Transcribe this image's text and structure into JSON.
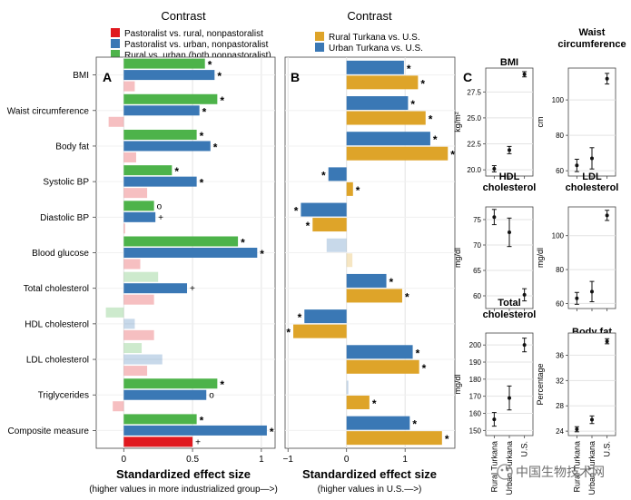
{
  "colors": {
    "red": "#e0191f",
    "blue": "#3a78b5",
    "green": "#4db34a",
    "gold": "#dea429",
    "panel_bg": "#ffffff",
    "grid": "#e3e3e3",
    "text": "#111111"
  },
  "panel_a": {
    "label": "A",
    "title": "Contrast",
    "legend": [
      {
        "label": "Pastoralist vs. rural, nonpastoralist",
        "color": "red"
      },
      {
        "label": "Pastoralist vs. urban, nonpastoralist",
        "color": "blue"
      },
      {
        "label": "Rural vs. urban (both nonpastoralist)",
        "color": "green"
      }
    ],
    "xlabel": "Standardized effect size",
    "xsub": "(higher values in more industrialized group—>)"
  },
  "panel_b": {
    "label": "B",
    "title": "Contrast",
    "legend": [
      {
        "label": "Rural Turkana vs. U.S.",
        "color": "gold"
      },
      {
        "label": "Urban Turkana vs. U.S.",
        "color": "blue"
      }
    ],
    "xlabel": "Standardized effect size",
    "xsub": "(higher values in U.S.—>)"
  },
  "panel_c": {
    "label": "C"
  },
  "watermark": "中国生物技术网",
  "chart_data": [
    {
      "type": "bar",
      "orientation": "horizontal",
      "panel": "A",
      "categories": [
        "BMI",
        "Waist circumference",
        "Body fat",
        "Systolic BP",
        "Diastolic BP",
        "Blood glucose",
        "Total cholesterol",
        "HDL cholesterol",
        "LDL cholesterol",
        "Triglycerides",
        "Composite measure"
      ],
      "series": [
        {
          "name": "Rural vs. urban (both nonpastoralist)",
          "color": "green",
          "values": [
            0.59,
            0.68,
            0.53,
            0.35,
            0.22,
            0.83,
            0.25,
            -0.13,
            0.13,
            0.68,
            0.53
          ],
          "marks": [
            "*",
            "*",
            "*",
            "*",
            "o",
            "*",
            "",
            "",
            "",
            "*",
            "*"
          ],
          "faded": [
            false,
            false,
            false,
            false,
            false,
            false,
            true,
            true,
            true,
            false,
            false
          ]
        },
        {
          "name": "Pastoralist vs. urban, nonpastoralist",
          "color": "blue",
          "values": [
            0.66,
            0.55,
            0.63,
            0.53,
            0.23,
            0.97,
            0.46,
            0.08,
            0.28,
            0.6,
            1.04
          ],
          "marks": [
            "*",
            "*",
            "*",
            "*",
            "+",
            "*",
            "+",
            "",
            "",
            "o",
            "*"
          ],
          "faded": [
            false,
            false,
            false,
            false,
            false,
            false,
            false,
            true,
            true,
            false,
            false
          ]
        },
        {
          "name": "Pastoralist vs. rural, nonpastoralist",
          "color": "red",
          "values": [
            0.08,
            -0.11,
            0.09,
            0.17,
            0.01,
            0.12,
            0.22,
            0.22,
            0.17,
            -0.08,
            0.5
          ],
          "marks": [
            "",
            "",
            "",
            "",
            "",
            "",
            "",
            "",
            "",
            "",
            "+"
          ],
          "faded": [
            true,
            true,
            true,
            true,
            true,
            true,
            true,
            true,
            true,
            true,
            false
          ]
        }
      ],
      "xlim": [
        -0.2,
        1.1
      ],
      "xticks": [
        "0",
        "0.5",
        "1"
      ],
      "xtick_values": [
        0,
        0.5,
        1
      ],
      "grid": true
    },
    {
      "type": "bar",
      "orientation": "horizontal",
      "panel": "B",
      "categories": [
        "BMI",
        "Waist circumference",
        "Body fat",
        "Systolic BP",
        "Diastolic BP",
        "Blood glucose",
        "Total cholesterol",
        "HDL cholesterol",
        "LDL cholesterol",
        "Triglycerides",
        "Composite measure"
      ],
      "series": [
        {
          "name": "Urban Turkana vs. U.S.",
          "color": "blue",
          "values": [
            0.98,
            1.05,
            1.43,
            -0.31,
            -0.78,
            -0.34,
            0.68,
            -0.72,
            1.13,
            0.0,
            1.08
          ],
          "marks": [
            "*",
            "*",
            "*",
            "*",
            "*",
            "",
            "*",
            "*",
            "*",
            "",
            "*"
          ],
          "faded": [
            false,
            false,
            false,
            false,
            false,
            true,
            false,
            false,
            false,
            true,
            false
          ]
        },
        {
          "name": "Rural Turkana vs. U.S.",
          "color": "gold",
          "values": [
            1.22,
            1.35,
            1.73,
            0.11,
            -0.58,
            0.1,
            0.95,
            -0.91,
            1.24,
            0.39,
            1.63
          ],
          "marks": [
            "*",
            "*",
            "*",
            "*",
            "*",
            "",
            "*",
            "*",
            "*",
            "*",
            "*"
          ],
          "faded": [
            false,
            false,
            false,
            false,
            false,
            true,
            false,
            false,
            false,
            false,
            false
          ]
        }
      ],
      "xlim": [
        -1.05,
        1.85
      ],
      "xticks": [
        "−1",
        "0",
        "1"
      ],
      "xtick_values": [
        -1,
        0,
        1
      ],
      "grid": true
    },
    {
      "type": "scatter",
      "panel": "C",
      "subplots": [
        {
          "title": [
            "BMI"
          ],
          "ylabel": "kg/m²",
          "ylim": [
            19.4,
            29.8
          ],
          "yticks": [
            20.0,
            22.5,
            25.0,
            27.5
          ],
          "ytick_labels": [
            "20.0",
            "22.5",
            "25.0",
            "27.5"
          ],
          "categories": [
            "Rural Turkana",
            "Urban Turkana",
            "U.S."
          ],
          "values": [
            20.1,
            21.9,
            29.2
          ],
          "err": [
            0.3,
            0.35,
            0.25
          ]
        },
        {
          "title": [
            "Waist",
            "circumference"
          ],
          "ylabel": "cm",
          "ylim": [
            57,
            118
          ],
          "yticks": [
            60,
            80,
            100
          ],
          "ytick_labels": [
            "60",
            "80",
            "100"
          ],
          "categories": [
            "Rural Turkana",
            "Urban Turkana",
            "U.S."
          ],
          "values": [
            63,
            67,
            112
          ],
          "err": [
            3.5,
            6,
            3
          ]
        },
        {
          "title": [
            "HDL",
            "cholesterol"
          ],
          "ylabel": "mg/dl",
          "ylim": [
            57.5,
            77.5
          ],
          "yticks": [
            60,
            65,
            70,
            75
          ],
          "ytick_labels": [
            "60",
            "65",
            "70",
            "75"
          ],
          "categories": [
            "Rural Turkana",
            "Urban Turkana",
            "U.S."
          ],
          "values": [
            75.5,
            72.5,
            60.2
          ],
          "err": [
            1.5,
            2.8,
            1.2
          ]
        },
        {
          "title": [
            "LDL",
            "cholesterol"
          ],
          "ylabel": "mg/dl",
          "ylim": [
            57,
            117
          ],
          "yticks": [
            60,
            80,
            100
          ],
          "ytick_labels": [
            "60",
            "80",
            "100"
          ],
          "categories": [
            "Rural Turkana",
            "Urban Turkana",
            "U.S."
          ],
          "values": [
            63,
            67,
            112
          ],
          "err": [
            3.5,
            6,
            3
          ]
        },
        {
          "title": [
            "Total",
            "cholesterol"
          ],
          "ylabel": "mg/dl",
          "ylim": [
            147,
            207
          ],
          "yticks": [
            150,
            160,
            170,
            180,
            190,
            200
          ],
          "ytick_labels": [
            "150",
            "160",
            "170",
            "180",
            "190",
            "200"
          ],
          "categories": [
            "Rural Turkana",
            "Urban Turkana",
            "U.S."
          ],
          "values": [
            156.5,
            169,
            200
          ],
          "err": [
            4,
            7,
            4
          ]
        },
        {
          "title": [
            "Body fat"
          ],
          "ylabel": "Percentage",
          "ylim": [
            23.3,
            39.5
          ],
          "yticks": [
            24,
            28,
            32,
            36
          ],
          "ytick_labels": [
            "24",
            "28",
            "32",
            "36"
          ],
          "categories": [
            "Rural Turkana",
            "Urban Turkana",
            "U.S."
          ],
          "values": [
            24.3,
            25.8,
            38.2
          ],
          "err": [
            0.4,
            0.6,
            0.4
          ]
        }
      ]
    }
  ]
}
